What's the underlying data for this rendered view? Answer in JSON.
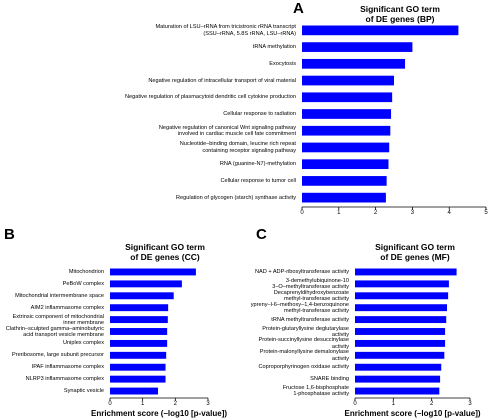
{
  "chart_data": [
    {
      "type": "bar",
      "panel": "A",
      "title": "Significant GO term\nof DE genes (BP)",
      "categories": [
        "Maturation of LSU–rRNA from tricistronic rRNA transcript\n(SSU–rRNA, 5.8S rRNA, LSU–rRNA)",
        "tRNA methylation",
        "Exocytosis",
        "Negative regulation of intracellular transport of viral material",
        "Negative regulation of plasmacytoid dendritic cell cytokine production",
        "Cellular response to radiation",
        "Negative regulation of canonical Wnt signaling pathway\ninvolved in cardiac muscle cell fate commitment",
        "Nucleotide–binding domain, leucine rich repeat\ncontaining receptor signaling pathway",
        "RNA (guanine-N7)-methylation",
        "Cellular response to tumor cell",
        "Regulation of glycogen (starch) synthase activity"
      ],
      "values": [
        4.25,
        3.0,
        2.8,
        2.5,
        2.45,
        2.42,
        2.4,
        2.37,
        2.35,
        2.3,
        2.28
      ],
      "color": "#0000ff",
      "xlim": [
        0,
        5
      ],
      "xticks": [
        0,
        1,
        2,
        3,
        4,
        5
      ]
    },
    {
      "type": "bar",
      "panel": "B",
      "title": "Significant GO term\nof DE genes (CC)",
      "categories": [
        "Mitochondrion",
        "PeBoW complex",
        "Mitochondrial intermembrane space",
        "AIM2 inflammasome complex",
        "Extrinsic component of mitochondrial\ninner membrane",
        "Clathrin–sculpted gamma–aminobutyric\nacid transport vesicle membrane",
        "Uniplex complex",
        "Preribosome, large subunit precursor",
        "IPAF inflammasome complex",
        "NLRP3 inflammasome complex",
        "Synaptic vesicle"
      ],
      "values": [
        2.63,
        2.2,
        1.95,
        1.78,
        1.77,
        1.75,
        1.75,
        1.72,
        1.7,
        1.7,
        1.47
      ],
      "color": "#0000ff",
      "xlim": [
        0,
        3
      ],
      "xticks": [
        0,
        1,
        2,
        3
      ],
      "x_label": "Enrichment score (–log10 [p-value])"
    },
    {
      "type": "bar",
      "panel": "C",
      "title": "Significant GO term\nof DE genes (MF)",
      "categories": [
        "NAD + ADP-ribosyltransferase activity",
        "3-demethylubiquinone-10\n3–O–methyltransferase activity",
        "Decaprenyldihydroxybenzoate\nmethyl-transferase activity",
        "ypreny–l-6–methoxy–1,4-benzoquinone\nmethyl-transferase activity",
        "tRNA methyltransferase activity",
        "Protein-glutaryllysine deglutarylase activity",
        "Protein-succinyllysine desuccinylase activity",
        "Protein-malonyllysine demalonylase activity",
        "Coproporphyrinogen oxidase activity",
        "SNARE binding",
        "Fructose 1,6-bisphosphate\n1-phosphatase activity"
      ],
      "values": [
        2.65,
        2.45,
        2.43,
        2.4,
        2.38,
        2.35,
        2.35,
        2.33,
        2.25,
        2.22,
        2.2
      ],
      "color": "#0000ff",
      "xlim": [
        0,
        3
      ],
      "xticks": [
        0,
        1,
        2,
        3
      ],
      "x_label": "Enrichment score (–log10 [p-value])"
    }
  ]
}
